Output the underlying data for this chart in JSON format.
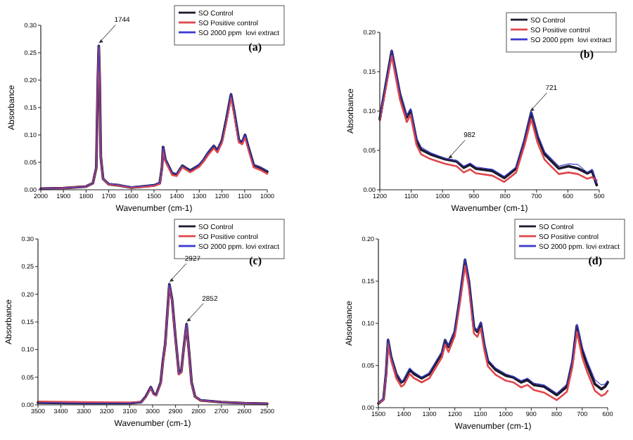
{
  "chart_data": [
    {
      "type": "line",
      "xlabel": "Wavenumber (cm-1)",
      "ylabel": "Absorbance",
      "legend": "top right",
      "xlim": [
        2000,
        1000
      ],
      "xticks": [
        2000,
        1900,
        1800,
        1700,
        1600,
        1500,
        1400,
        1300,
        1200,
        1100,
        1000
      ],
      "ylim": [
        0,
        0.3
      ],
      "yticks": [
        {
          "value": 0,
          "label": "0.00"
        },
        {
          "value": 0.05,
          "label": "0.05"
        },
        {
          "value": 0.1,
          "label": "0.10"
        },
        {
          "value": 0.15,
          "label": "0.15"
        },
        {
          "value": 0.2,
          "label": "0.20"
        },
        {
          "value": 0.25,
          "label": "0.25"
        },
        {
          "value": 0.3,
          "label": "0.30"
        }
      ],
      "annotations": [
        {
          "text": "1744",
          "x": 1744,
          "y": 0.265
        },
        "(a)"
      ],
      "x": [
        2000,
        1900,
        1800,
        1770,
        1755,
        1748,
        1744,
        1740,
        1735,
        1725,
        1700,
        1652,
        1600,
        1500,
        1475,
        1465,
        1460,
        1450,
        1420,
        1400,
        1375,
        1360,
        1340,
        1300,
        1280,
        1260,
        1236,
        1220,
        1200,
        1180,
        1160,
        1145,
        1125,
        1110,
        1098,
        1085,
        1060,
        1030,
        1000
      ],
      "series": [
        {
          "name": "SO Control",
          "color": "#1a1a2e",
          "values": [
            0.002,
            0.003,
            0.006,
            0.012,
            0.04,
            0.2,
            0.262,
            0.2,
            0.06,
            0.02,
            0.01,
            0.008,
            0.004,
            0.008,
            0.012,
            0.04,
            0.078,
            0.055,
            0.03,
            0.028,
            0.044,
            0.04,
            0.035,
            0.045,
            0.055,
            0.068,
            0.08,
            0.072,
            0.09,
            0.13,
            0.174,
            0.14,
            0.09,
            0.087,
            0.1,
            0.08,
            0.045,
            0.04,
            0.033
          ]
        },
        {
          "name": "SO Positive control",
          "color": "#e0474c",
          "values": [
            0.002,
            0.003,
            0.006,
            0.012,
            0.04,
            0.2,
            0.26,
            0.2,
            0.06,
            0.02,
            0.01,
            0.008,
            0.004,
            0.007,
            0.011,
            0.038,
            0.075,
            0.052,
            0.027,
            0.025,
            0.041,
            0.037,
            0.032,
            0.042,
            0.052,
            0.064,
            0.076,
            0.068,
            0.086,
            0.125,
            0.168,
            0.135,
            0.086,
            0.083,
            0.096,
            0.076,
            0.041,
            0.036,
            0.029
          ]
        },
        {
          "name": "SO 2000 ppm  lovi extract",
          "color": "#3a3ad0",
          "values": [
            0.002,
            0.003,
            0.006,
            0.012,
            0.042,
            0.205,
            0.265,
            0.203,
            0.062,
            0.021,
            0.011,
            0.009,
            0.005,
            0.009,
            0.013,
            0.041,
            0.079,
            0.056,
            0.031,
            0.029,
            0.045,
            0.041,
            0.036,
            0.046,
            0.056,
            0.069,
            0.081,
            0.073,
            0.091,
            0.132,
            0.176,
            0.142,
            0.091,
            0.088,
            0.101,
            0.081,
            0.046,
            0.041,
            0.034
          ]
        }
      ]
    },
    {
      "type": "line",
      "xlabel": "Wavenumber (cm-1)",
      "ylabel": "Absorbance",
      "legend": "top right",
      "xlim": [
        1200,
        500
      ],
      "xticks": [
        1200,
        1100,
        1000,
        900,
        800,
        700,
        600,
        500
      ],
      "ylim": [
        0,
        0.2
      ],
      "yticks": [
        {
          "value": 0,
          "label": "0.00"
        },
        {
          "value": 0.05,
          "label": "0.05"
        },
        {
          "value": 0.1,
          "label": "0.10"
        },
        {
          "value": 0.15,
          "label": "0.15"
        },
        {
          "value": 0.2,
          "label": "0.20"
        }
      ],
      "annotations": [
        {
          "text": "982",
          "x": 982,
          "y": 0.038
        },
        {
          "text": "721",
          "x": 721,
          "y": 0.098
        },
        "(b)"
      ],
      "x": [
        1200,
        1162,
        1136,
        1114,
        1102,
        1083,
        1068,
        1038,
        992,
        955,
        932,
        912,
        894,
        841,
        803,
        765,
        738,
        717,
        697,
        674,
        629,
        598,
        568,
        538,
        523,
        508
      ],
      "series": [
        {
          "name": "SO Control",
          "color": "#1a1a2e",
          "values": [
            0.09,
            0.176,
            0.122,
            0.092,
            0.101,
            0.063,
            0.051,
            0.045,
            0.039,
            0.036,
            0.028,
            0.032,
            0.027,
            0.024,
            0.015,
            0.027,
            0.063,
            0.098,
            0.068,
            0.045,
            0.027,
            0.03,
            0.027,
            0.021,
            0.024,
            0.006
          ]
        },
        {
          "name": "SO Positive control",
          "color": "#e0474c",
          "values": [
            0.088,
            0.17,
            0.115,
            0.086,
            0.095,
            0.057,
            0.045,
            0.039,
            0.033,
            0.03,
            0.022,
            0.026,
            0.021,
            0.018,
            0.01,
            0.022,
            0.057,
            0.09,
            0.06,
            0.038,
            0.02,
            0.022,
            0.02,
            0.014,
            0.016,
            0.012
          ]
        },
        {
          "name": "SO 2000 ppm  lovi extract",
          "color": "#3a3ad0",
          "values": [
            0.09,
            0.178,
            0.124,
            0.094,
            0.103,
            0.066,
            0.054,
            0.047,
            0.04,
            0.037,
            0.03,
            0.034,
            0.029,
            0.026,
            0.017,
            0.029,
            0.065,
            0.1,
            0.07,
            0.048,
            0.03,
            0.033,
            0.032,
            0.022,
            0.026,
            0.008
          ]
        }
      ]
    },
    {
      "type": "line",
      "xlabel": "Wavenumber (cm-1)",
      "ylabel": "Absorbance",
      "legend": "top right",
      "xlim": [
        3500,
        2500
      ],
      "xticks": [
        3500,
        3400,
        3300,
        3200,
        3100,
        3000,
        2900,
        2800,
        2700,
        2600,
        2500
      ],
      "ylim": [
        0,
        0.3
      ],
      "yticks": [
        {
          "value": 0,
          "label": "0.00"
        },
        {
          "value": 0.05,
          "label": "0.05"
        },
        {
          "value": 0.1,
          "label": "0.10"
        },
        {
          "value": 0.15,
          "label": "0.15"
        },
        {
          "value": 0.2,
          "label": "0.20"
        },
        {
          "value": 0.25,
          "label": "0.25"
        },
        {
          "value": 0.3,
          "label": "0.30"
        }
      ],
      "annotations": [
        {
          "text": "2927",
          "x": 2927,
          "y": 0.22
        },
        {
          "text": "2852",
          "x": 2852,
          "y": 0.148
        },
        "(c)"
      ],
      "x": [
        3500,
        3300,
        3100,
        3050,
        3030,
        3008,
        2995,
        2985,
        2965,
        2955,
        2945,
        2927,
        2915,
        2900,
        2885,
        2875,
        2865,
        2852,
        2840,
        2830,
        2815,
        2790,
        2700,
        2600,
        2500
      ],
      "series": [
        {
          "name": "SO Control",
          "color": "#1a1a2e",
          "values": [
            0.004,
            0.003,
            0.003,
            0.005,
            0.015,
            0.032,
            0.02,
            0.018,
            0.04,
            0.08,
            0.11,
            0.218,
            0.19,
            0.12,
            0.056,
            0.06,
            0.1,
            0.146,
            0.09,
            0.04,
            0.015,
            0.008,
            0.005,
            0.003,
            0.002
          ]
        },
        {
          "name": "SO Positive control",
          "color": "#e0474c",
          "values": [
            0.006,
            0.005,
            0.004,
            0.005,
            0.014,
            0.031,
            0.019,
            0.017,
            0.039,
            0.079,
            0.109,
            0.216,
            0.188,
            0.119,
            0.055,
            0.059,
            0.099,
            0.145,
            0.089,
            0.039,
            0.015,
            0.008,
            0.005,
            0.003,
            0.002
          ]
        },
        {
          "name": "SO 2000 ppm. lovi extract",
          "color": "#3a3ad0",
          "values": [
            0.004,
            0.003,
            0.003,
            0.005,
            0.015,
            0.033,
            0.02,
            0.018,
            0.041,
            0.081,
            0.111,
            0.22,
            0.191,
            0.121,
            0.057,
            0.061,
            0.101,
            0.148,
            0.091,
            0.041,
            0.016,
            0.009,
            0.005,
            0.003,
            0.002
          ]
        }
      ]
    },
    {
      "type": "line",
      "xlabel": "Wavenumber (cm-1)",
      "ylabel": "Absorbance",
      "legend": "top right",
      "xlim": [
        1500,
        600
      ],
      "xticks": [
        1500,
        1400,
        1300,
        1200,
        1100,
        1000,
        900,
        800,
        700,
        600
      ],
      "ylim": [
        0,
        0.2
      ],
      "yticks": [
        {
          "value": 0,
          "label": "0.00"
        },
        {
          "value": 0.05,
          "label": "0.05"
        },
        {
          "value": 0.1,
          "label": "0.10"
        },
        {
          "value": 0.15,
          "label": "0.15"
        },
        {
          "value": 0.2,
          "label": "0.20"
        }
      ],
      "annotations": [
        "(d)"
      ],
      "x": [
        1500,
        1480,
        1470,
        1462,
        1450,
        1430,
        1410,
        1400,
        1377,
        1360,
        1330,
        1300,
        1270,
        1250,
        1238,
        1225,
        1200,
        1180,
        1160,
        1145,
        1125,
        1112,
        1098,
        1085,
        1070,
        1040,
        1000,
        970,
        940,
        915,
        890,
        850,
        800,
        760,
        738,
        721,
        700,
        680,
        650,
        625,
        610,
        600
      ],
      "series": [
        {
          "name": "SO Control",
          "color": "#1a1a2e",
          "values": [
            0.005,
            0.01,
            0.04,
            0.08,
            0.06,
            0.04,
            0.03,
            0.032,
            0.045,
            0.04,
            0.035,
            0.04,
            0.055,
            0.065,
            0.08,
            0.072,
            0.09,
            0.13,
            0.175,
            0.15,
            0.095,
            0.09,
            0.1,
            0.075,
            0.055,
            0.045,
            0.038,
            0.036,
            0.03,
            0.033,
            0.027,
            0.025,
            0.015,
            0.025,
            0.055,
            0.097,
            0.068,
            0.05,
            0.028,
            0.022,
            0.025,
            0.03
          ]
        },
        {
          "name": "SO Positive control",
          "color": "#e0474c",
          "values": [
            0.005,
            0.01,
            0.038,
            0.077,
            0.056,
            0.035,
            0.025,
            0.027,
            0.04,
            0.035,
            0.03,
            0.035,
            0.05,
            0.06,
            0.075,
            0.066,
            0.085,
            0.124,
            0.168,
            0.143,
            0.088,
            0.084,
            0.094,
            0.069,
            0.049,
            0.039,
            0.032,
            0.03,
            0.024,
            0.027,
            0.021,
            0.018,
            0.009,
            0.019,
            0.049,
            0.09,
            0.06,
            0.042,
            0.02,
            0.014,
            0.016,
            0.02
          ]
        },
        {
          "name": "SO 2000 ppm. lovi extract",
          "color": "#3a3ad0",
          "values": [
            0.006,
            0.011,
            0.041,
            0.082,
            0.061,
            0.041,
            0.031,
            0.033,
            0.047,
            0.042,
            0.036,
            0.041,
            0.057,
            0.066,
            0.081,
            0.073,
            0.091,
            0.132,
            0.177,
            0.152,
            0.096,
            0.091,
            0.102,
            0.077,
            0.057,
            0.047,
            0.04,
            0.037,
            0.032,
            0.035,
            0.029,
            0.027,
            0.017,
            0.028,
            0.058,
            0.099,
            0.072,
            0.055,
            0.033,
            0.027,
            0.028,
            0.032
          ]
        }
      ]
    }
  ]
}
